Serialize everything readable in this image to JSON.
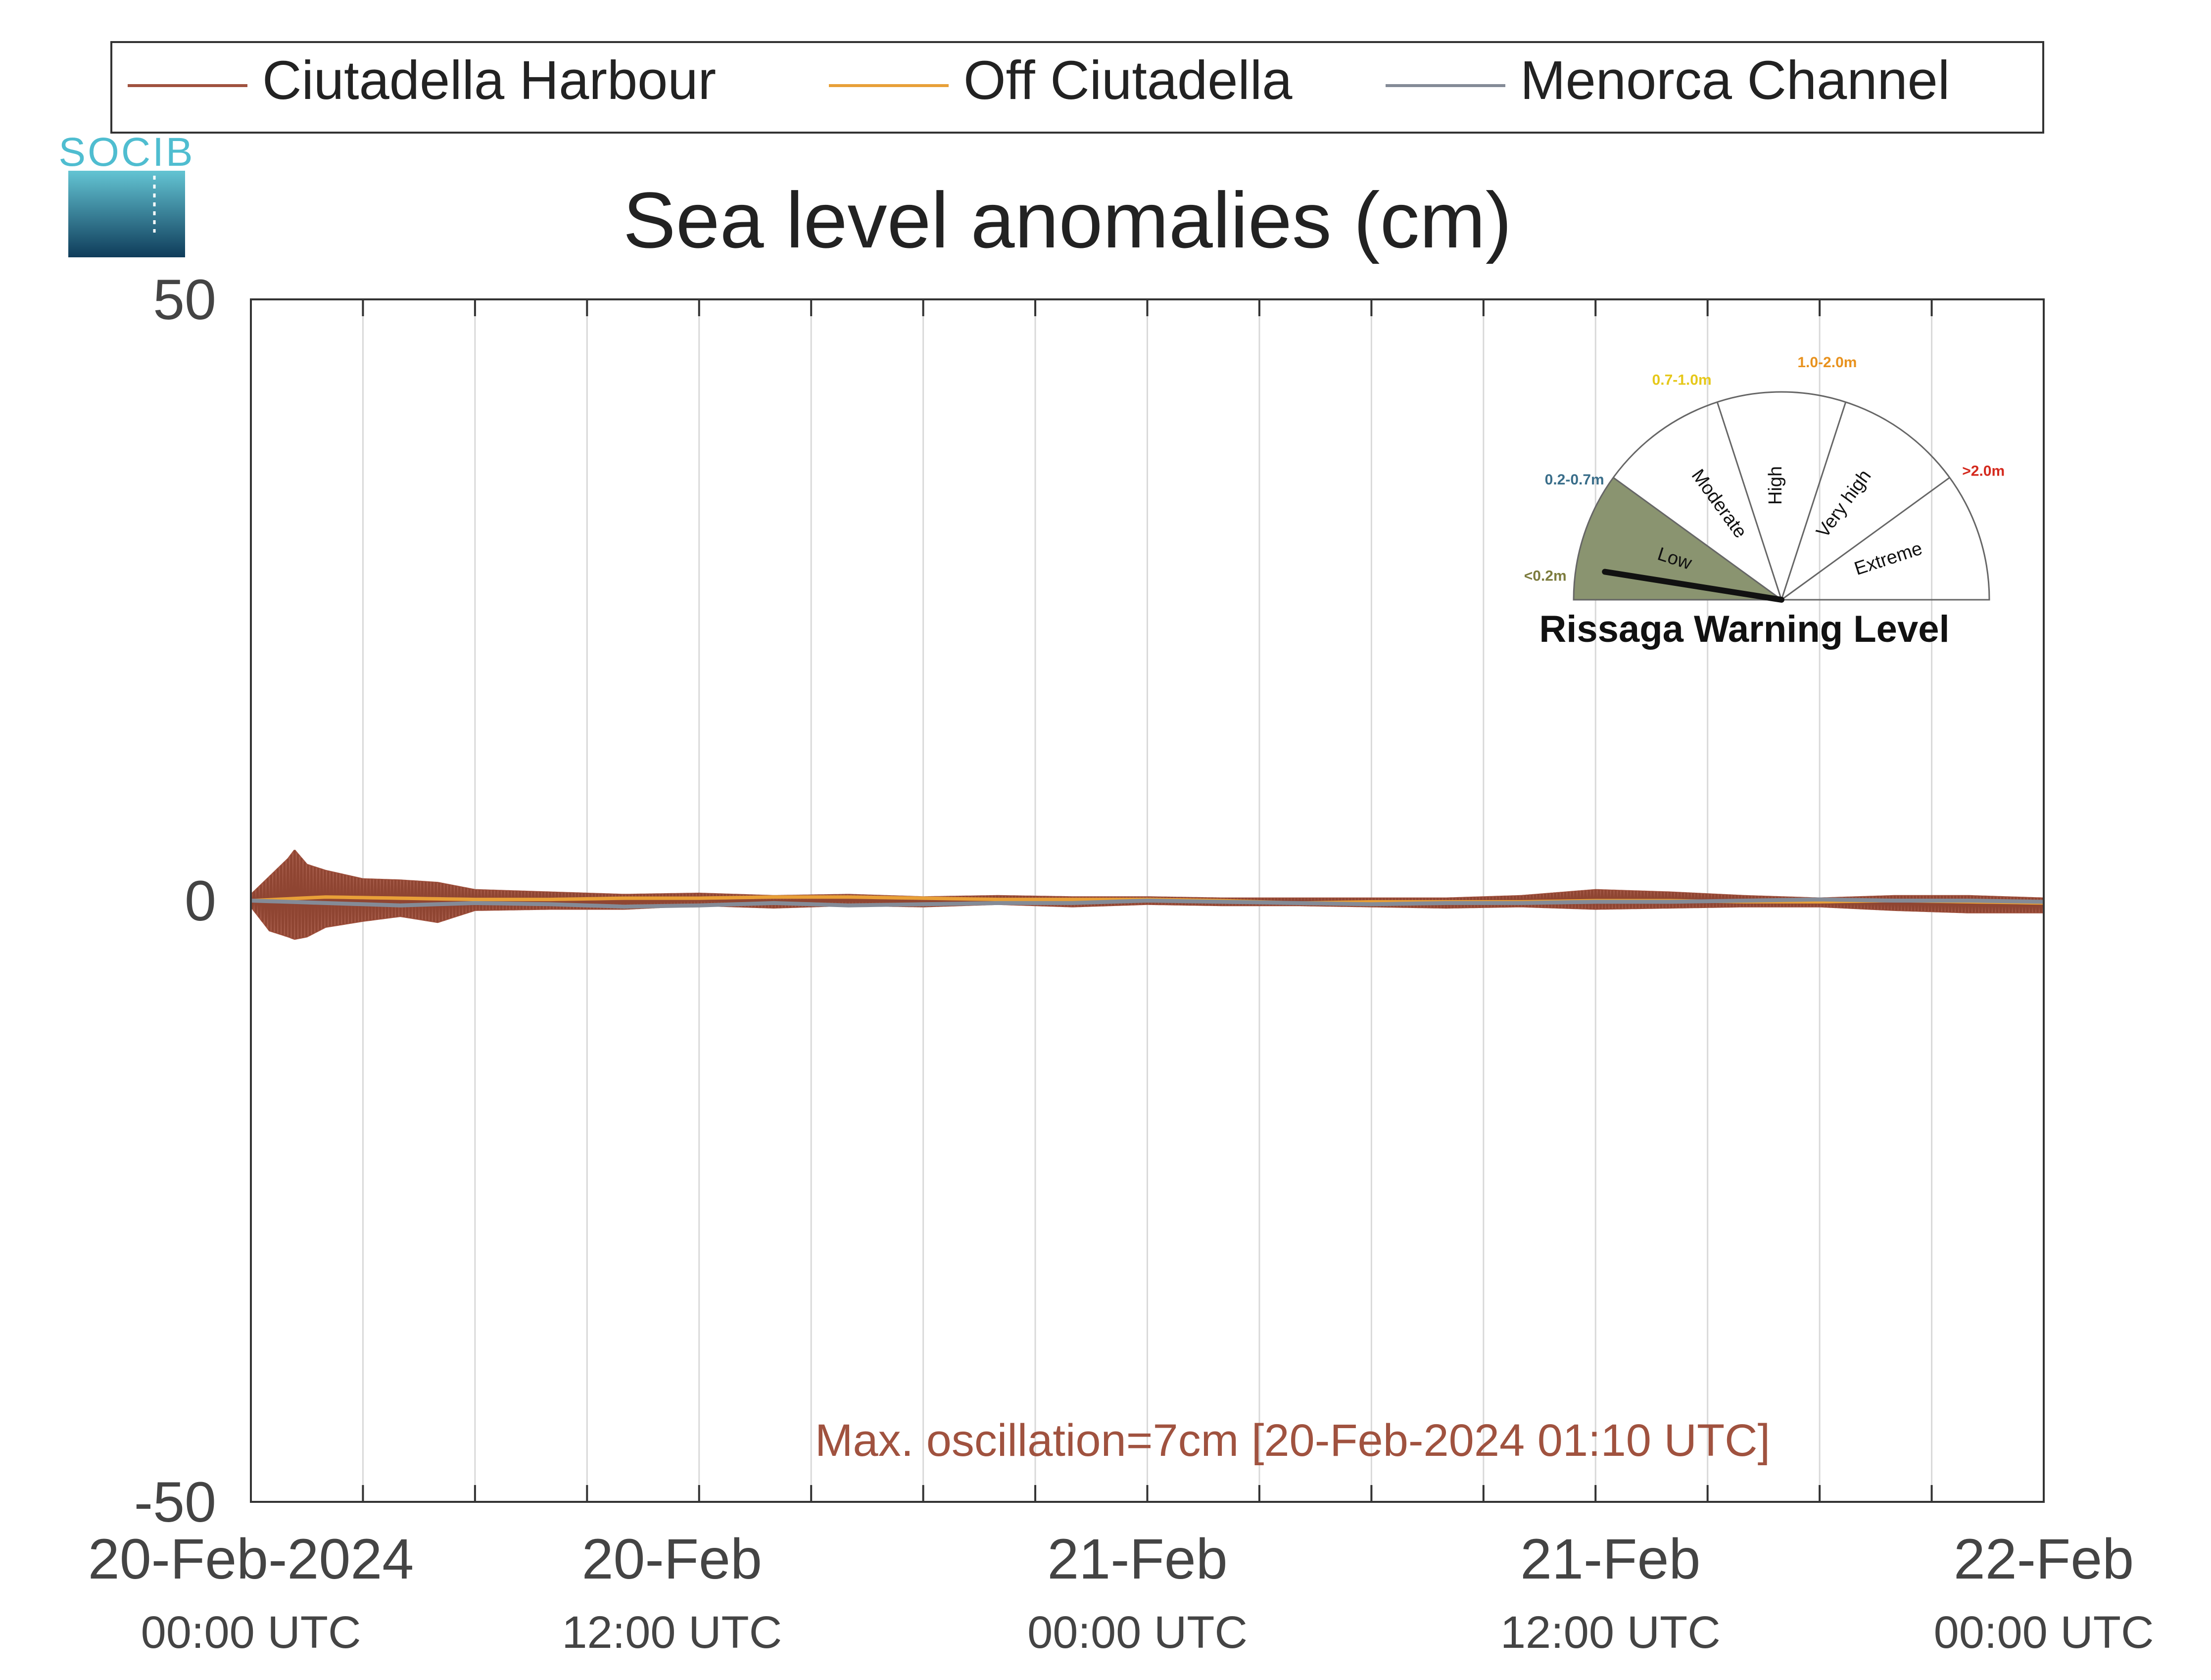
{
  "chart_data": {
    "type": "line",
    "title": "Sea level anomalies (cm)",
    "xlabel": "",
    "ylabel": "",
    "ylim": [
      -50,
      50
    ],
    "yticks": [
      50,
      0,
      -50
    ],
    "xlim_hours": [
      0,
      48
    ],
    "grid": "vertical lines every 3 hours",
    "legend_position": "top",
    "xticks": [
      {
        "hour": 0,
        "date": "20-Feb-2024",
        "time": "00:00 UTC"
      },
      {
        "hour": 12,
        "date": "20-Feb",
        "time": "12:00 UTC"
      },
      {
        "hour": 24,
        "date": "21-Feb",
        "time": "00:00 UTC"
      },
      {
        "hour": 36,
        "date": "21-Feb",
        "time": "12:00 UTC"
      },
      {
        "hour": 48,
        "date": "22-Feb",
        "time": "00:00 UTC"
      }
    ],
    "series": [
      {
        "name": "Ciutadella Harbour",
        "color": "#a0523f",
        "envelope": {
          "hours": [
            0,
            0.5,
            1,
            1.17,
            1.5,
            2,
            3,
            4,
            5,
            6,
            8,
            10,
            12,
            14,
            16,
            18,
            20,
            22,
            24,
            26,
            28,
            30,
            32,
            34,
            36,
            38,
            40,
            42,
            44,
            46,
            48
          ],
          "max": [
            0.5,
            2,
            3.5,
            4.2,
            3,
            2.5,
            1.8,
            1.7,
            1.5,
            0.9,
            0.7,
            0.5,
            0.6,
            0.4,
            0.5,
            0.3,
            0.4,
            0.3,
            0.3,
            0.2,
            0.2,
            0.2,
            0.2,
            0.4,
            0.9,
            0.7,
            0.4,
            0.2,
            0.4,
            0.4,
            0.2
          ],
          "min": [
            -0.5,
            -2.5,
            -3,
            -3.2,
            -3,
            -2.2,
            -1.7,
            -1.3,
            -1.8,
            -0.8,
            -0.7,
            -0.7,
            -0.4,
            -0.6,
            -0.4,
            -0.5,
            -0.3,
            -0.5,
            -0.3,
            -0.4,
            -0.4,
            -0.5,
            -0.6,
            -0.5,
            -0.7,
            -0.6,
            -0.5,
            -0.5,
            -0.8,
            -1.0,
            -1.0
          ]
        }
      },
      {
        "name": "Off Ciutadella",
        "color": "#e8a038",
        "hours": [
          0,
          2,
          4,
          6,
          8,
          10,
          12,
          14,
          16,
          18,
          20,
          22,
          24,
          26,
          28,
          30,
          32,
          34,
          36,
          38,
          40,
          42,
          44,
          46,
          48
        ],
        "values": [
          0,
          0.3,
          0.2,
          0.1,
          0.1,
          0.2,
          0.2,
          0.3,
          0.3,
          0.2,
          0.1,
          0.1,
          0.1,
          0.0,
          -0.2,
          -0.1,
          -0.1,
          -0.1,
          0.0,
          0.0,
          -0.1,
          -0.1,
          0.0,
          -0.1,
          -0.2
        ]
      },
      {
        "name": "Menorca Channel",
        "color": "#848b97",
        "hours": [
          0,
          2,
          4,
          6,
          8,
          10,
          12,
          14,
          16,
          18,
          20,
          22,
          24,
          26,
          28,
          30,
          32,
          34,
          36,
          38,
          40,
          42,
          44,
          46,
          48
        ],
        "values": [
          0,
          -0.2,
          -0.4,
          -0.2,
          -0.3,
          -0.5,
          -0.4,
          -0.2,
          -0.4,
          -0.3,
          -0.2,
          -0.2,
          0.0,
          -0.1,
          -0.2,
          -0.3,
          -0.2,
          -0.2,
          -0.1,
          -0.1,
          0.0,
          0.1,
          0.0,
          0.0,
          -0.1
        ]
      }
    ],
    "annotation": "Max. oscillation=7cm [20-Feb-2024 01:10 UTC]",
    "annotation_color": "#a0523f"
  },
  "logo": {
    "text": "SOCIB"
  },
  "gauge": {
    "title": "Rissaga Warning Level",
    "indicator_fraction": 0.05,
    "sectors": [
      {
        "label": "Low",
        "range": "<0.2m",
        "color": "#7d7c3e",
        "fill": "#8a9470"
      },
      {
        "label": "Moderate",
        "range": "0.2-0.7m",
        "color": "#3a6e8a"
      },
      {
        "label": "High",
        "range": "0.7-1.0m",
        "color": "#e6c81a"
      },
      {
        "label": "Very high",
        "range": "1.0-2.0m",
        "color": "#e8921e"
      },
      {
        "label": "Extreme",
        "range": ">2.0m",
        "color": "#d42a1e"
      }
    ]
  }
}
